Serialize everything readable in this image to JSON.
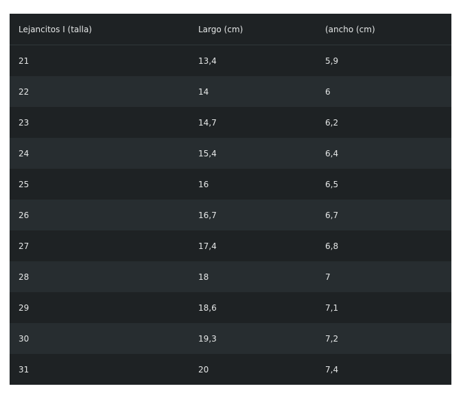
{
  "table": {
    "headers": [
      "Lejancitos I (talla)",
      "Largo (cm)",
      "(ancho (cm)"
    ],
    "rows": [
      [
        "21",
        "13,4",
        "5,9"
      ],
      [
        "22",
        "14",
        "6"
      ],
      [
        "23",
        "14,7",
        "6,2"
      ],
      [
        "24",
        "15,4",
        "6,4"
      ],
      [
        "25",
        "16",
        "6,5"
      ],
      [
        "26",
        "16,7",
        "6,7"
      ],
      [
        "27",
        "17,4",
        "6,8"
      ],
      [
        "28",
        "18",
        "7"
      ],
      [
        "29",
        "18,6",
        "7,1"
      ],
      [
        "30",
        "19,3",
        "7,2"
      ],
      [
        "31",
        "20",
        "7,4"
      ]
    ]
  },
  "colors": {
    "row_dark": "#1e2224",
    "row_light": "#272d30",
    "text": "#e6e8e8"
  }
}
